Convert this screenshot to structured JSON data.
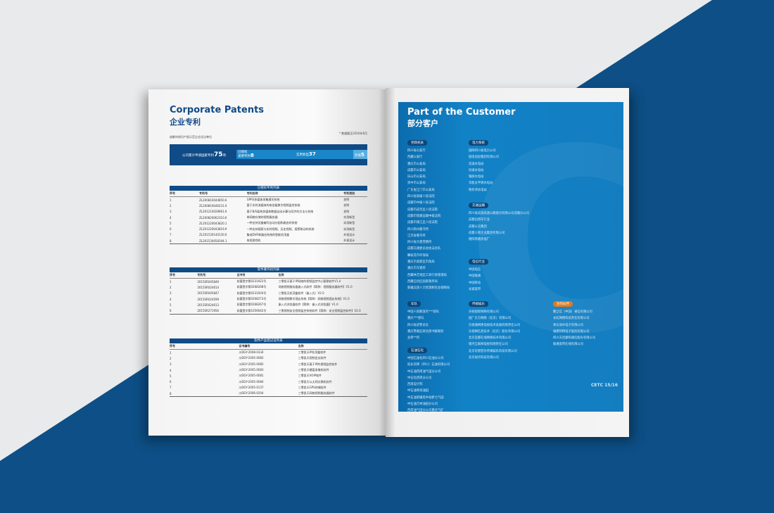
{
  "left_page": {
    "title_en": "Corporate Patents",
    "title_cn": "企业专利",
    "subtitle": "成都市知识产权示范企业试点单位",
    "note": "* 数据截至2016年6月",
    "stats": {
      "total_label": "公司累计申请国家专利",
      "total": "75",
      "unit": "项",
      "granted_label": "已授权",
      "invention_label": "发明专利",
      "invention": "8",
      "utility_label": "实用新型",
      "utility": "37",
      "design_label": "外观",
      "design": "5"
    },
    "patents": {
      "title": "已授权专利列表",
      "headers": [
        "序号",
        "专利号",
        "专利名称",
        "专利类别"
      ],
      "rows": [
        [
          "1",
          "ZL200810044850.6",
          "GPRS多媒体采集通讯系统",
          "发明"
        ],
        [
          "2",
          "ZL200810046231.0",
          "基于实时流媒体的电信级数字视频监控系统",
          "发明"
        ],
        [
          "3",
          "ZL201210028661.6",
          "基于B/S架构多媒体数据自动计算与同步的方法与系统",
          "发明"
        ],
        [
          "4",
          "ZL200820062310.6",
          "带网络存储的视频服务器",
          "实用新型"
        ],
        [
          "5",
          "ZL201220043820.1",
          "一种支持设备编号自动分配和路由的系统",
          "实用新型"
        ],
        [
          "6",
          "ZL201220043819.9",
          "一种支持搜索与实时视频、历史视频、报警联动的系统",
          "实用新型"
        ],
        [
          "7",
          "ZL201530140130.6",
          "集成DVR和路由系统的智能机顶盒",
          "外观设计"
        ],
        [
          "8",
          "ZL201530058194.1",
          "电视游戏机",
          "外观设计"
        ]
      ]
    },
    "software": {
      "title": "软件著作权列表",
      "headers": [
        "序号",
        "专利号",
        "证书号",
        "名称"
      ],
      "rows": [
        [
          "1",
          "2015SR045849",
          "软著登字第0231922号",
          "三零凯天基于IP网络的视频监控中心管理软件V1.4"
        ],
        [
          "2",
          "2015SR024614",
          "软著登字第0268268号",
          "网络视频服务器嵌入式软件【简称：视频服务器软件】V1.0"
        ],
        [
          "3",
          "2015SR045847",
          "软著登字第0231920号",
          "三零凯天机顶盒软件（嵌入式）V2.0"
        ],
        [
          "4",
          "2015SR024599",
          "软著登字第0268273号",
          "网络视频数字酒店系统【简称：网络视频酒店系统】V1.0"
        ],
        [
          "5",
          "2015SR024613",
          "软著登字第0268267号",
          "嵌入式浏览器软件【简称：嵌入式浏览器】V1.0"
        ],
        [
          "6",
          "2015SR271956",
          "软著登字第1059042号",
          "三零视频安全视频监控系统软件【简称：安全视频监控软件】V2.0"
        ]
      ]
    },
    "products": {
      "title": "软件产品登记证列表",
      "headers": [
        "序号",
        "证书编号",
        "名称"
      ],
      "rows": [
        [
          "1",
          "川DGY-2008-0334",
          "三零凯天IP机顶盒软件"
        ],
        [
          "2",
          "川DGY-2005-0082",
          "三零凯天视频会议软件"
        ],
        [
          "3",
          "川DGY-2005-0085",
          "三零凯天基于IP的视频监控软件"
        ],
        [
          "4",
          "川DGY-2005-0083",
          "三零凯天硬盘录像机软件"
        ],
        [
          "5",
          "川DGY-2005-0081",
          "三零凯天VOIP软件"
        ],
        [
          "6",
          "川DGY-2005-0084",
          "三零凯天以太网交换机软件"
        ],
        [
          "7",
          "川DGY-2005-0137",
          "三零凯天GPS终端软件"
        ],
        [
          "8",
          "川DGY-2006-0204",
          "三零凯天网络视频服务器软件"
        ]
      ]
    }
  },
  "right_page": {
    "title_en": "Part of the Customer",
    "title_cn": "部分客户",
    "footer": "CETC 15/16",
    "groups": [
      {
        "name": "党政机关",
        "items": [
          "四川省公安厅",
          "西藏公安厅",
          "重庆市公安局",
          "成都市公安局",
          "乐山市公安局",
          "资中市公安局",
          "广东省江门市公安局",
          "四川省高级人民法院",
          "成都市中级人民法院",
          "成都市成华区人民法院",
          "成都市铁路运输中级法院",
          "成都市锦江区人民法院",
          "四川新州看守所",
          "江苏省看守所",
          "四川省大建劳教所",
          "成都交通委员会执法总队",
          "攀枝花市环保局",
          "重庆市高新区市政局",
          "重庆市车管所",
          "西藏林芝地区工商行政管理局",
          "西藏自治区国家税务局",
          "新疆兵团人力资源和社会保障局"
        ]
      },
      {
        "name": "电力系统",
        "items": [
          "国网四川省电力公司",
          "国电电投集团有限公司",
          "双滩水电站",
          "风滩水电站",
          "锦屏水电站",
          "华能太平驿水电站",
          "映秀湾水电站"
        ]
      },
      {
        "name": "交通运输",
        "items": [
          "四川省成渝高速公路股份有限公司成雅分公司",
          "成都出租车行业",
          "成都公交集团",
          "成都三和企业集团有限公司",
          "德阳铁路热电厂"
        ]
      },
      {
        "name": "电信行业",
        "items": [
          "中国电信",
          "中国联通",
          "中国移动",
          "长城宽带"
        ]
      },
      {
        "name": "军队",
        "items": [
          "中国人民解放军***部队",
          "重庆***部队",
          "四川省武警总队",
          "重庆警备区政治部书群联轮",
          "总参**所"
        ]
      },
      {
        "name": "石油石化",
        "items": [
          "中国石油化四川石油分公司",
          "延长壳牌（四川）石油有限公司",
          "中石油西南油气田分公司",
          "中石化西南分公司",
          "西南设计院",
          "中石油青海油田",
          "中石油新疆塔中站新七气田",
          "中石油吉林油田分公司",
          "西南油气田分公司重庆气矿"
        ]
      },
      {
        "name": "传媒娱乐",
        "items": [
          "央视国际网络有限公司",
          "国广东方网络（北京）有限公司",
          "百视通网络电视技术发展有限责任公司",
          "乐视网信息技术（北京）股份有限公司",
          "北京首都在线网络技术有限公司",
          "银河互联网电视有限责任公司",
          "北京优朋普乐传媒娱乐科技有限公司",
          "北京视点科技有限公司"
        ]
      },
      {
        "name": "合作伙伴",
        "items": [
          "聚立信（中国）通信有限公司",
          "长虹网络科技责任有限公司",
          "青岛海尔电子有限公司",
          "福建阿特电子股份有限公司",
          "四川天邑康和通信股份有限公司",
          "联通宽带在线有限公司"
        ]
      }
    ]
  },
  "colors": {
    "navy": "#0f4b86",
    "panel_blue": "#1282c7",
    "orange": "#e07b22",
    "background_blue": "#0d4f86"
  }
}
